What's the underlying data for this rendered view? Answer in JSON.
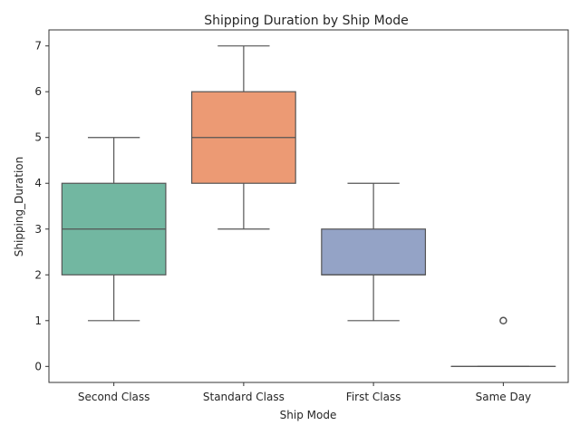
{
  "chart_data": {
    "type": "box",
    "title": "Shipping Duration by Ship Mode",
    "xlabel": "Ship Mode",
    "ylabel": "Shipping_Duration",
    "ylim": [
      -0.35,
      7.35
    ],
    "yticks": [
      0,
      1,
      2,
      3,
      4,
      5,
      6,
      7
    ],
    "grid": false,
    "categories": [
      "Second Class",
      "Standard Class",
      "First Class",
      "Same Day"
    ],
    "boxes": [
      {
        "category": "Second Class",
        "whisker_low": 1,
        "q1": 2,
        "median": 3,
        "q3": 4,
        "whisker_high": 5,
        "outliers": [],
        "color": "#72b7a1"
      },
      {
        "category": "Standard Class",
        "whisker_low": 3,
        "q1": 4,
        "median": 5,
        "q3": 6,
        "whisker_high": 7,
        "outliers": [],
        "color": "#ec9a74"
      },
      {
        "category": "First Class",
        "whisker_low": 1,
        "q1": 2,
        "median": 2,
        "q3": 3,
        "whisker_high": 4,
        "outliers": [],
        "color": "#94a3c6"
      },
      {
        "category": "Same Day",
        "whisker_low": 0,
        "q1": 0,
        "median": 0,
        "q3": 0,
        "whisker_high": 0,
        "outliers": [
          1
        ],
        "color": "#d38fc0"
      }
    ]
  }
}
